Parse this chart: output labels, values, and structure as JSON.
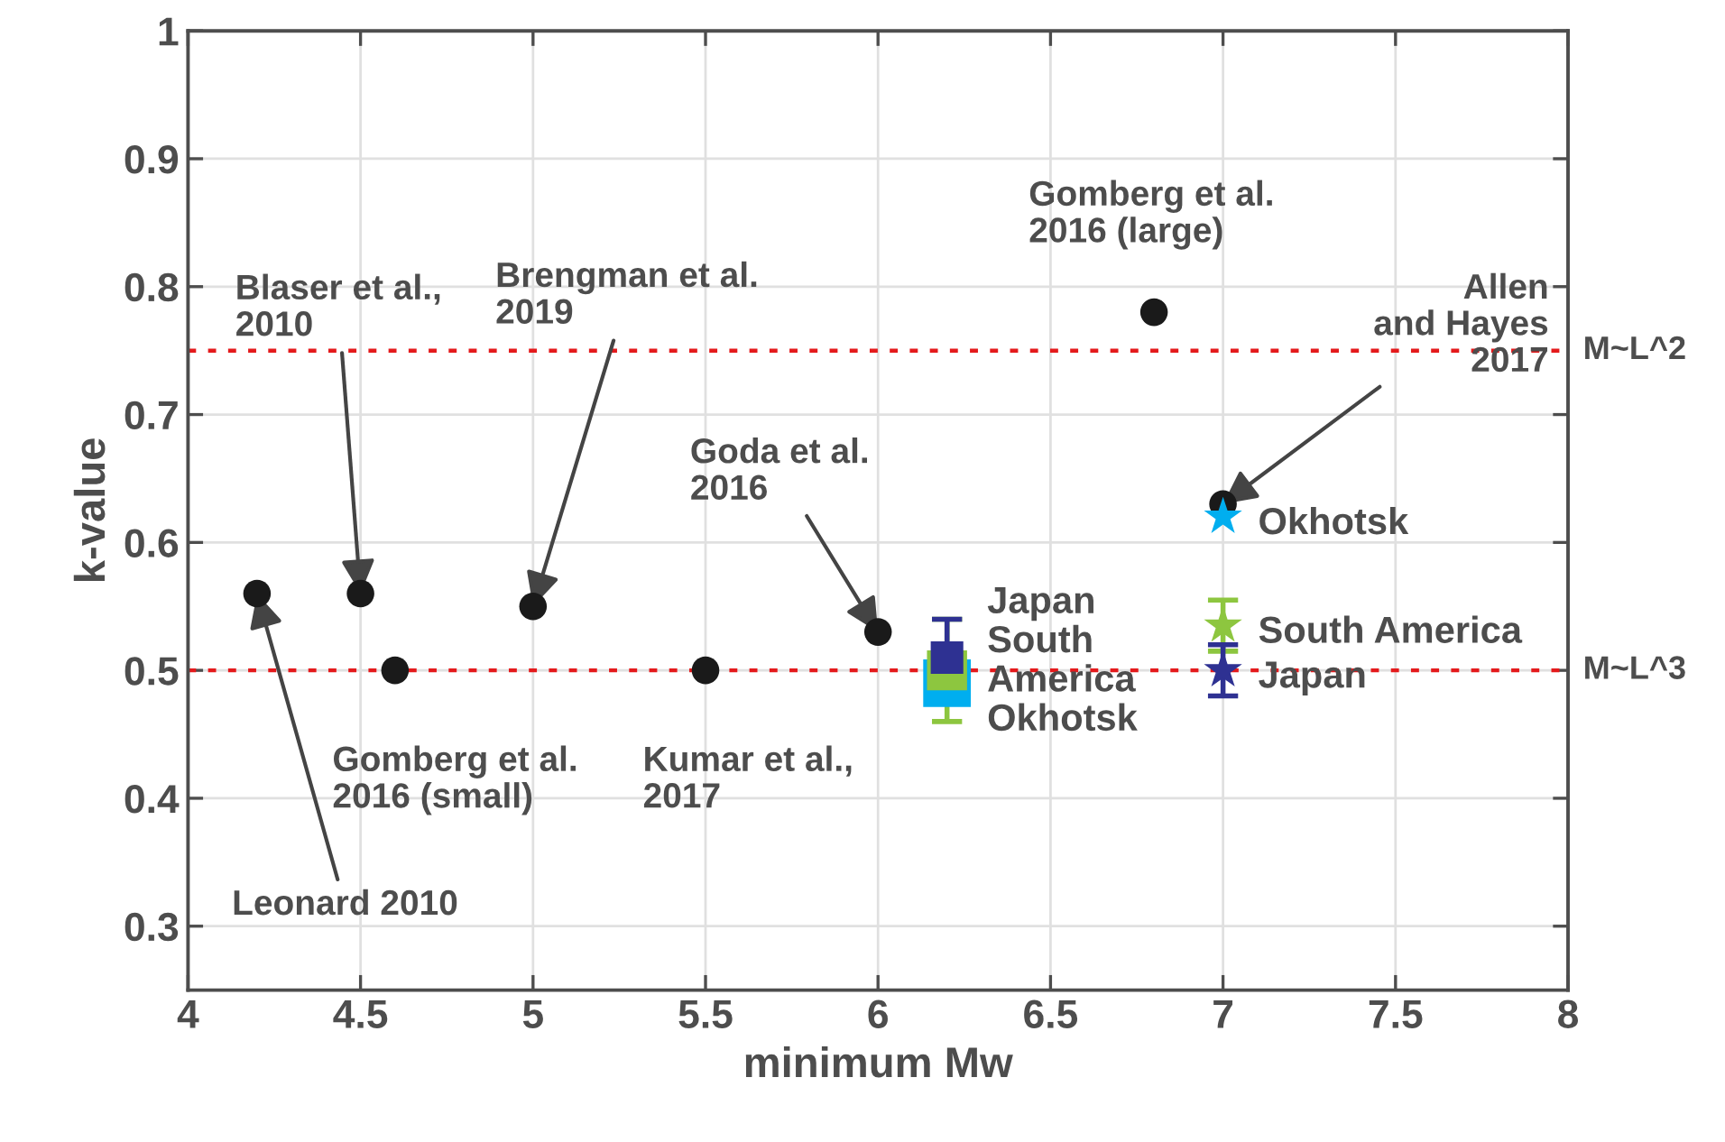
{
  "chart_data": {
    "type": "scatter",
    "xlabel": "minimum Mw",
    "ylabel": "k-value",
    "xlim": [
      4,
      8
    ],
    "ylim": [
      0.25,
      1
    ],
    "xticks": [
      4,
      4.5,
      5,
      5.5,
      6,
      6.5,
      7,
      7.5,
      8
    ],
    "yticks": [
      0.3,
      0.4,
      0.5,
      0.6,
      0.7,
      0.8,
      0.9,
      1
    ],
    "grid": true,
    "series": [
      {
        "color": "#1a1a1a",
        "marker": "circle",
        "x": [
          4.2,
          4.5,
          4.6,
          5.0,
          5.5,
          6.0,
          6.8,
          7.0
        ],
        "values": [
          0.56,
          0.56,
          0.5,
          0.55,
          0.5,
          0.53,
          0.78,
          0.63
        ]
      },
      {
        "color": "#00aeef",
        "marker": "square",
        "x": [
          6.2
        ],
        "values": [
          0.49
        ],
        "errors": [
          0.01
        ]
      },
      {
        "color": "#8dc63f",
        "marker": "square",
        "x": [
          6.2
        ],
        "values": [
          0.5
        ],
        "errors": [
          0.04
        ]
      },
      {
        "color": "#2e3192",
        "marker": "square",
        "x": [
          6.2
        ],
        "values": [
          0.51
        ],
        "errors": [
          0.03
        ]
      },
      {
        "name": "Okhotsk",
        "color": "#00aeef",
        "marker": "star",
        "x": [
          7.0
        ],
        "values": [
          0.62
        ]
      },
      {
        "name": "South America",
        "color": "#8dc63f",
        "marker": "star",
        "x": [
          7.0
        ],
        "values": [
          0.535
        ],
        "errors": [
          0.02
        ]
      },
      {
        "name": "Japan",
        "color": "#2e3192",
        "marker": "star",
        "x": [
          7.0
        ],
        "values": [
          0.5
        ],
        "errors": [
          0.02
        ]
      }
    ],
    "ref_lines": [
      {
        "axis": "y",
        "value": 0.75,
        "label": "M~L^2",
        "color": "#e41a1c",
        "line_style": "dotted"
      },
      {
        "axis": "y",
        "value": 0.5,
        "label": "M~L^3",
        "color": "#e41a1c",
        "line_style": "dotted"
      }
    ],
    "annotations": [
      {
        "text": "Leonard 2010",
        "x": 4.2,
        "y": 0.56
      },
      {
        "text": "Blaser et al.,\n2010",
        "x": 4.5,
        "y": 0.56
      },
      {
        "text": "Brengman et al.\n2019",
        "x": 5.0,
        "y": 0.55
      },
      {
        "text": "Gomberg et al.\n2016 (small)",
        "x": 4.6,
        "y": 0.5
      },
      {
        "text": "Kumar et al.,\n2017",
        "x": 5.5,
        "y": 0.5
      },
      {
        "text": "Goda et al.\n2016",
        "x": 6.0,
        "y": 0.53
      },
      {
        "text": "Gomberg et al.\n2016 (large)",
        "x": 6.8,
        "y": 0.78
      },
      {
        "text": "Allen\nand Hayes\n2017",
        "x": 7.0,
        "y": 0.63
      },
      "Japan\nSouth\nAmerica\nOkhotsk"
    ]
  }
}
